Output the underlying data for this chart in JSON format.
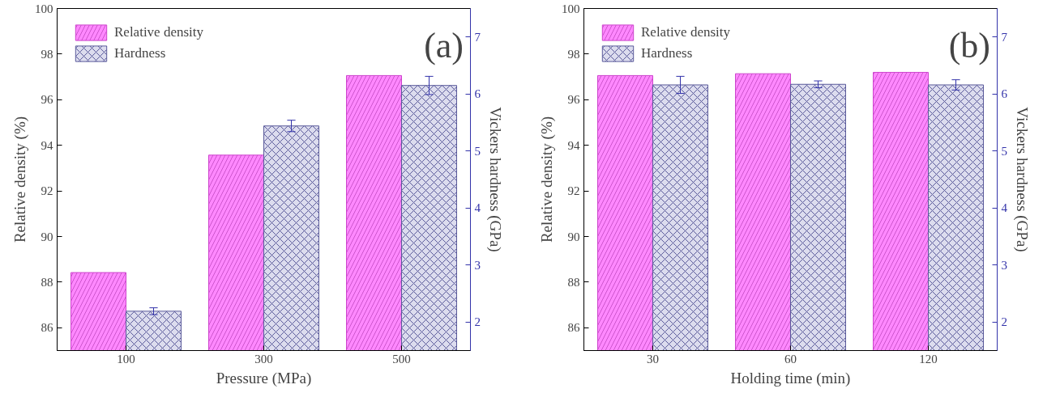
{
  "chart_data": [
    {
      "type": "bar",
      "xlabel": "Pressure (MPa)",
      "ylabel": "Relative density (%)",
      "y2label": "Vickers hardness (GPa)",
      "annotations": [
        "(a)"
      ],
      "categories": [
        "100",
        "300",
        "500"
      ],
      "ylim": [
        85,
        100
      ],
      "yticks": [
        86,
        88,
        90,
        92,
        94,
        96,
        98,
        100
      ],
      "y2lim": [
        1.5,
        7.5
      ],
      "y2ticks": [
        2,
        3,
        4,
        5,
        6,
        7
      ],
      "legend": "top left",
      "grid": false,
      "series": [
        {
          "name": "Relative density",
          "color": "#ff88ff",
          "values": [
            88.42,
            93.57,
            97.06
          ]
        },
        {
          "name": "Hardness",
          "color": "#dcdcee",
          "axis": "y2",
          "values": [
            2.19,
            5.44,
            6.15
          ],
          "errors": [
            0.06,
            0.1,
            0.16
          ]
        }
      ]
    },
    {
      "type": "bar",
      "xlabel": "Holding time (min)",
      "ylabel": "Relative density (%)",
      "y2label": "Vickers hardness (GPa)",
      "annotations": [
        "(b)"
      ],
      "categories": [
        "30",
        "60",
        "120"
      ],
      "ylim": [
        85,
        100
      ],
      "yticks": [
        86,
        88,
        90,
        92,
        94,
        96,
        98,
        100
      ],
      "y2lim": [
        1.5,
        7.5
      ],
      "y2ticks": [
        2,
        3,
        4,
        5,
        6,
        7
      ],
      "legend": "top left",
      "grid": false,
      "series": [
        {
          "name": "Relative density",
          "color": "#ff88ff",
          "values": [
            97.06,
            97.14,
            97.2
          ]
        },
        {
          "name": "Hardness",
          "color": "#dcdcee",
          "axis": "y2",
          "values": [
            6.16,
            6.17,
            6.16
          ],
          "errors": [
            0.15,
            0.06,
            0.09
          ]
        }
      ]
    }
  ]
}
